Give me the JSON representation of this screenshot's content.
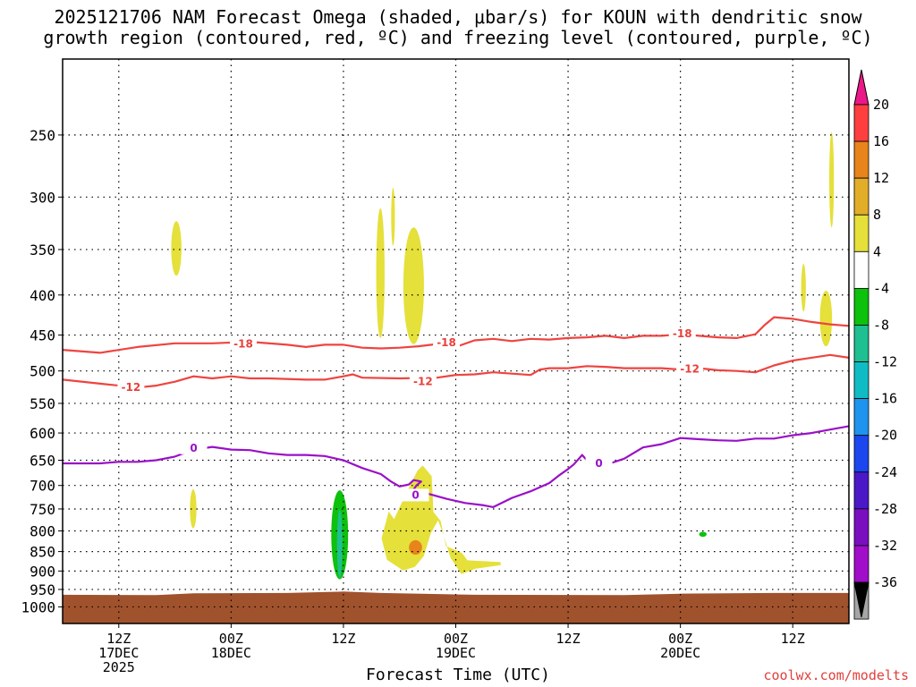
{
  "title_lines": [
    "2025121706 NAM Forecast Omega (shaded, μbar/s) for KOUN with dendritic snow",
    "growth region (contoured, red, ºC) and freezing level (contoured, purple, ºC)"
  ],
  "credit": "coolwx.com/modelts",
  "colors": {
    "frame": "#000000",
    "grid": "#000000",
    "ground": "#a0522d",
    "dgz": "#ee4440",
    "freezing": "#9a10c8"
  },
  "chart_data": {
    "type": "time-height cross section",
    "xlabel": "Forecast Time (UTC)",
    "x_range_hours": [
      0,
      84
    ],
    "x_ticks": [
      {
        "hour": 6,
        "lines": [
          "12Z",
          "17DEC",
          "2025"
        ]
      },
      {
        "hour": 18,
        "lines": [
          "00Z",
          "18DEC"
        ]
      },
      {
        "hour": 30,
        "lines": [
          "12Z"
        ]
      },
      {
        "hour": 42,
        "lines": [
          "00Z",
          "19DEC"
        ]
      },
      {
        "hour": 54,
        "lines": [
          "12Z"
        ]
      },
      {
        "hour": 66,
        "lines": [
          "00Z",
          "20DEC"
        ]
      },
      {
        "hour": 78,
        "lines": [
          "12Z"
        ]
      }
    ],
    "y_scale": "log pressure (hPa)",
    "y_range_hpa": [
      200,
      1050
    ],
    "y_ticks": [
      250,
      300,
      350,
      400,
      450,
      500,
      550,
      600,
      650,
      700,
      750,
      800,
      850,
      900,
      950,
      1000
    ],
    "colorbar": {
      "labels": [
        "20",
        "16",
        "12",
        "8",
        "4",
        "-4",
        "-8",
        "-12",
        "-16",
        "-20",
        "-24",
        "-28",
        "-32",
        "-36"
      ],
      "colors": [
        "#ff3f3f",
        "#e8841c",
        "#e2ae2a",
        "#e5e03a",
        "#ffffff",
        "#0dc10d",
        "#1ebf90",
        "#10bcc4",
        "#1e94ee",
        "#1c47ee",
        "#4b18c8",
        "#7a0fc0",
        "#a00ec9",
        "#a6a6a6"
      ],
      "top_arrow": "#ec1889",
      "bottom_arrow": "#000000"
    },
    "contours": [
      {
        "name": "-18",
        "color": "#ee4440",
        "labels": [
          {
            "hour": 19.3,
            "p": 462
          },
          {
            "hour": 41.0,
            "p": 460
          },
          {
            "hour": 66.2,
            "p": 448
          }
        ],
        "points": [
          [
            0,
            470
          ],
          [
            4,
            474
          ],
          [
            8,
            466
          ],
          [
            12,
            461
          ],
          [
            16,
            461
          ],
          [
            20,
            459
          ],
          [
            24,
            463
          ],
          [
            26,
            466
          ],
          [
            28,
            463
          ],
          [
            30,
            463
          ],
          [
            32,
            467
          ],
          [
            34,
            468
          ],
          [
            36,
            467
          ],
          [
            38,
            465
          ],
          [
            40,
            462
          ],
          [
            42,
            466
          ],
          [
            44,
            457
          ],
          [
            46,
            455
          ],
          [
            48,
            458
          ],
          [
            50,
            455
          ],
          [
            52,
            456
          ],
          [
            54,
            454
          ],
          [
            56,
            453
          ],
          [
            58,
            451
          ],
          [
            60,
            454
          ],
          [
            62,
            451
          ],
          [
            64,
            451
          ],
          [
            66,
            449
          ],
          [
            68,
            451
          ],
          [
            70,
            453
          ],
          [
            72,
            454
          ],
          [
            74,
            449
          ],
          [
            75,
            437
          ],
          [
            76,
            427
          ],
          [
            78,
            429
          ],
          [
            80,
            433
          ],
          [
            82,
            436
          ],
          [
            84,
            438
          ]
        ]
      },
      {
        "name": "-12",
        "color": "#ee4440",
        "labels": [
          {
            "hour": 7.3,
            "p": 525
          },
          {
            "hour": 38.5,
            "p": 516
          },
          {
            "hour": 67.0,
            "p": 497
          }
        ],
        "points": [
          [
            0,
            513
          ],
          [
            4,
            519
          ],
          [
            8,
            525
          ],
          [
            10,
            522
          ],
          [
            12,
            516
          ],
          [
            14,
            508
          ],
          [
            16,
            511
          ],
          [
            18,
            508
          ],
          [
            20,
            511
          ],
          [
            22,
            511
          ],
          [
            26,
            513
          ],
          [
            28,
            513
          ],
          [
            30,
            508
          ],
          [
            31,
            505
          ],
          [
            32,
            510
          ],
          [
            36,
            511
          ],
          [
            40,
            510
          ],
          [
            42,
            506
          ],
          [
            44,
            505
          ],
          [
            46,
            502
          ],
          [
            48,
            504
          ],
          [
            50,
            506
          ],
          [
            51,
            498
          ],
          [
            52,
            496
          ],
          [
            54,
            496
          ],
          [
            56,
            493
          ],
          [
            58,
            494
          ],
          [
            60,
            496
          ],
          [
            62,
            496
          ],
          [
            64,
            496
          ],
          [
            66,
            498
          ],
          [
            68,
            496
          ],
          [
            70,
            499
          ],
          [
            72,
            500
          ],
          [
            74,
            502
          ],
          [
            76,
            492
          ],
          [
            78,
            485
          ],
          [
            80,
            481
          ],
          [
            82,
            477
          ],
          [
            84,
            481
          ]
        ]
      },
      {
        "name": "0",
        "color": "#9a10c8",
        "labels": [
          {
            "hour": 14.0,
            "p": 627
          },
          {
            "hour": 37.7,
            "p": 720
          },
          {
            "hour": 57.3,
            "p": 656
          }
        ],
        "points": [
          [
            0,
            656
          ],
          [
            4,
            656
          ],
          [
            6,
            653
          ],
          [
            8,
            653
          ],
          [
            10,
            650
          ],
          [
            12,
            643
          ],
          [
            14,
            630
          ],
          [
            16,
            625
          ],
          [
            18,
            630
          ],
          [
            20,
            631
          ],
          [
            22,
            637
          ],
          [
            24,
            640
          ],
          [
            26,
            640
          ],
          [
            28,
            642
          ],
          [
            30,
            650
          ],
          [
            32,
            665
          ],
          [
            34,
            677
          ],
          [
            35,
            691
          ],
          [
            36,
            702
          ],
          [
            37,
            698
          ],
          [
            37.5,
            689
          ],
          [
            38.3,
            692
          ],
          [
            37.8,
            700
          ],
          [
            37.4,
            711
          ],
          [
            39,
            717
          ],
          [
            41,
            728
          ],
          [
            43,
            737
          ],
          [
            45,
            742
          ],
          [
            46,
            746
          ],
          [
            48,
            726
          ],
          [
            50,
            712
          ],
          [
            52,
            695
          ],
          [
            53,
            680
          ],
          [
            54,
            667
          ],
          [
            54.6,
            658
          ],
          [
            55.5,
            640
          ],
          [
            56,
            650
          ],
          [
            57,
            655
          ],
          [
            58.5,
            656
          ],
          [
            60,
            647
          ],
          [
            62,
            626
          ],
          [
            64,
            620
          ],
          [
            66,
            609
          ],
          [
            68,
            611
          ],
          [
            70,
            613
          ],
          [
            72,
            614
          ],
          [
            74,
            610
          ],
          [
            76,
            610
          ],
          [
            78,
            604
          ],
          [
            80,
            600
          ],
          [
            82,
            594
          ],
          [
            84,
            588
          ]
        ]
      }
    ],
    "omega_areas": [
      {
        "value_range": "4 to 8",
        "t_min": 11.6,
        "t_max": 12.7,
        "p_min": 322,
        "p_max": 378
      },
      {
        "value_range": "4 to 8",
        "t_min": 13.6,
        "t_max": 14.3,
        "p_min": 708,
        "p_max": 794
      },
      {
        "value_range": "4 to 8",
        "t_min": 33.5,
        "t_max": 34.4,
        "p_min": 310,
        "p_max": 454
      },
      {
        "value_range": "4 to 8",
        "t_min": 35.1,
        "t_max": 35.5,
        "p_min": 292,
        "p_max": 346
      },
      {
        "value_range": "4 to 8",
        "t_min": 36.4,
        "t_max": 38.6,
        "p_min": 328,
        "p_max": 462
      },
      {
        "value_range": "4 to 8",
        "t_min": 33.5,
        "t_max": 46.8,
        "p_min": 660,
        "p_max": 908
      },
      {
        "value_range": "8 to 12",
        "t_min": 37.0,
        "t_max": 38.4,
        "p_min": 822,
        "p_max": 858
      },
      {
        "value_range": "-4 to -8",
        "t_min": 28.7,
        "t_max": 30.5,
        "p_min": 710,
        "p_max": 922
      },
      {
        "value_range": "-4 to -8",
        "t_min": 68.0,
        "t_max": 68.8,
        "p_min": 802,
        "p_max": 814
      },
      {
        "value_range": "4 to 8",
        "t_min": 78.9,
        "t_max": 79.4,
        "p_min": 365,
        "p_max": 420
      },
      {
        "value_range": "4 to 8",
        "t_min": 81.9,
        "t_max": 82.4,
        "p_min": 248,
        "p_max": 328
      },
      {
        "value_range": "4 to 8",
        "t_min": 80.9,
        "t_max": 82.2,
        "p_min": 395,
        "p_max": 465
      }
    ],
    "ground": {
      "label": "surface",
      "p_min": 962,
      "p_max": 1050
    }
  }
}
